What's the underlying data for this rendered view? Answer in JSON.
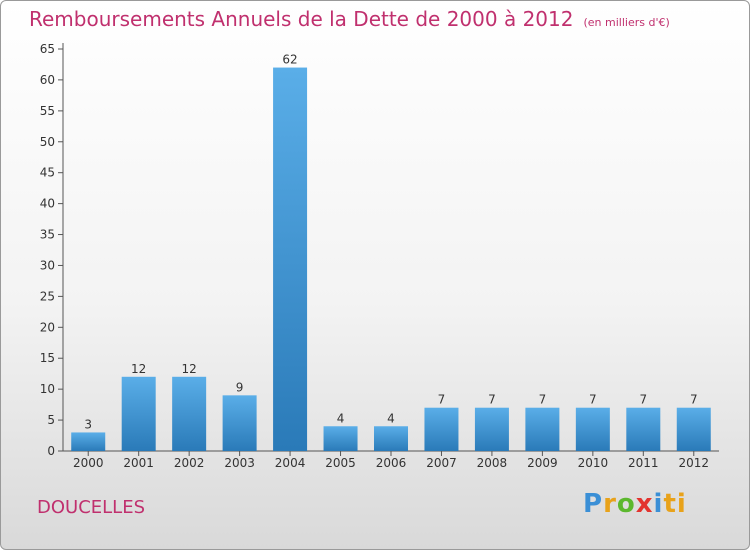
{
  "header": {
    "title": "Remboursements Annuels de la Dette de 2000 à 2012",
    "unit": "(en milliers d'€)"
  },
  "footer": {
    "commune": "DOUCELLES",
    "logo_text": "Proxiti"
  },
  "colors": {
    "bar_light": "#5aaee8",
    "bar_dark": "#2a7ab8",
    "title": "#c0306e"
  },
  "chart_data": {
    "type": "bar",
    "title": "Remboursements Annuels de la Dette de 2000 à 2012",
    "xlabel": "",
    "ylabel": "",
    "categories": [
      "2000",
      "2001",
      "2002",
      "2003",
      "2004",
      "2005",
      "2006",
      "2007",
      "2008",
      "2009",
      "2010",
      "2011",
      "2012"
    ],
    "values": [
      3,
      12,
      12,
      9,
      62,
      4,
      4,
      7,
      7,
      7,
      7,
      7,
      7
    ],
    "data_labels": [
      "3",
      "12",
      "12",
      "9",
      "62",
      "4",
      "4",
      "7",
      "7",
      "7",
      "7",
      "7",
      "7"
    ],
    "ylim": [
      0,
      65
    ],
    "yticks": [
      0,
      5,
      10,
      15,
      20,
      25,
      30,
      35,
      40,
      45,
      50,
      55,
      60,
      65
    ],
    "grid": false,
    "legend": "none"
  }
}
